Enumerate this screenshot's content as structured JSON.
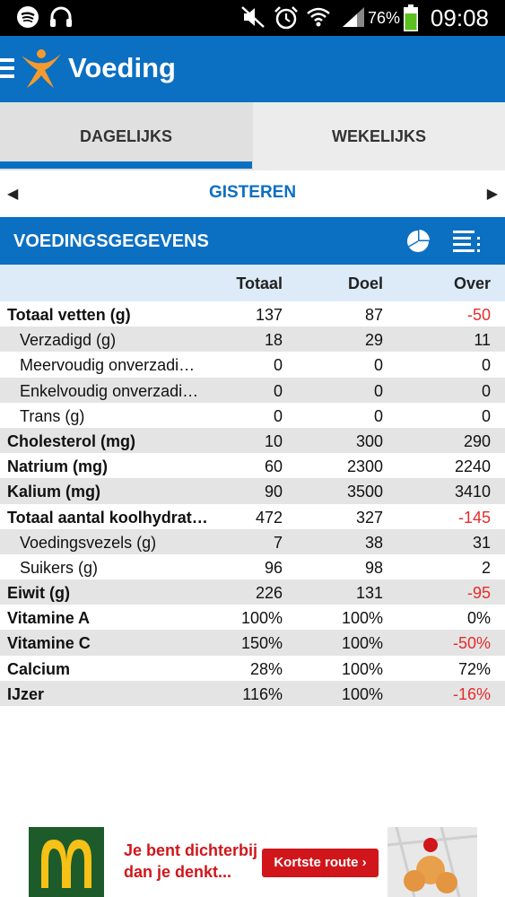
{
  "status_bar": {
    "battery": "76%",
    "time": "09:08",
    "icons": [
      "spotify-icon",
      "headphones-icon",
      "mute-icon",
      "alarm-icon",
      "wifi-icon",
      "signal-icon",
      "battery-icon"
    ]
  },
  "app_bar": {
    "title": "Voeding",
    "accent": "#0b6fc2"
  },
  "tabs": [
    {
      "label": "DAGELIJKS",
      "active": true
    },
    {
      "label": "WEKELIJKS",
      "active": false
    }
  ],
  "date_nav": {
    "label": "GISTEREN"
  },
  "section": {
    "title": "VOEDINGSGEGEVENS"
  },
  "columns": {
    "total": "Totaal",
    "goal": "Doel",
    "over": "Over"
  },
  "rows": [
    {
      "label": "Totaal vetten (g)",
      "total": "137",
      "goal": "87",
      "over": "-50"
    },
    {
      "label": "Verzadigd (g)",
      "total": "18",
      "goal": "29",
      "over": "11"
    },
    {
      "label": "Meervoudig onverzadi…",
      "total": "0",
      "goal": "0",
      "over": "0"
    },
    {
      "label": "Enkelvoudig onverzadi…",
      "total": "0",
      "goal": "0",
      "over": "0"
    },
    {
      "label": "Trans (g)",
      "total": "0",
      "goal": "0",
      "over": "0"
    },
    {
      "label": "Cholesterol (mg)",
      "total": "10",
      "goal": "300",
      "over": "290"
    },
    {
      "label": "Natrium (mg)",
      "total": "60",
      "goal": "2300",
      "over": "2240"
    },
    {
      "label": "Kalium (mg)",
      "total": "90",
      "goal": "3500",
      "over": "3410"
    },
    {
      "label": "Totaal aantal koolhydrat…",
      "total": "472",
      "goal": "327",
      "over": "-145"
    },
    {
      "label": "Voedingsvezels (g)",
      "total": "7",
      "goal": "38",
      "over": "31"
    },
    {
      "label": "Suikers (g)",
      "total": "96",
      "goal": "98",
      "over": "2"
    },
    {
      "label": "Eiwit (g)",
      "total": "226",
      "goal": "131",
      "over": "-95"
    },
    {
      "label": "Vitamine A",
      "total": "100%",
      "goal": "100%",
      "over": "0%"
    },
    {
      "label": "Vitamine C",
      "total": "150%",
      "goal": "100%",
      "over": "-50%"
    },
    {
      "label": "Calcium",
      "total": "28%",
      "goal": "100%",
      "over": "72%"
    },
    {
      "label": "IJzer",
      "total": "116%",
      "goal": "100%",
      "over": "-16%"
    }
  ],
  "ad": {
    "text_line1": "Je bent dichterbij",
    "text_line2": "dan je denkt...",
    "button": "Kortste route ›",
    "brand_color": "#d0161b"
  }
}
